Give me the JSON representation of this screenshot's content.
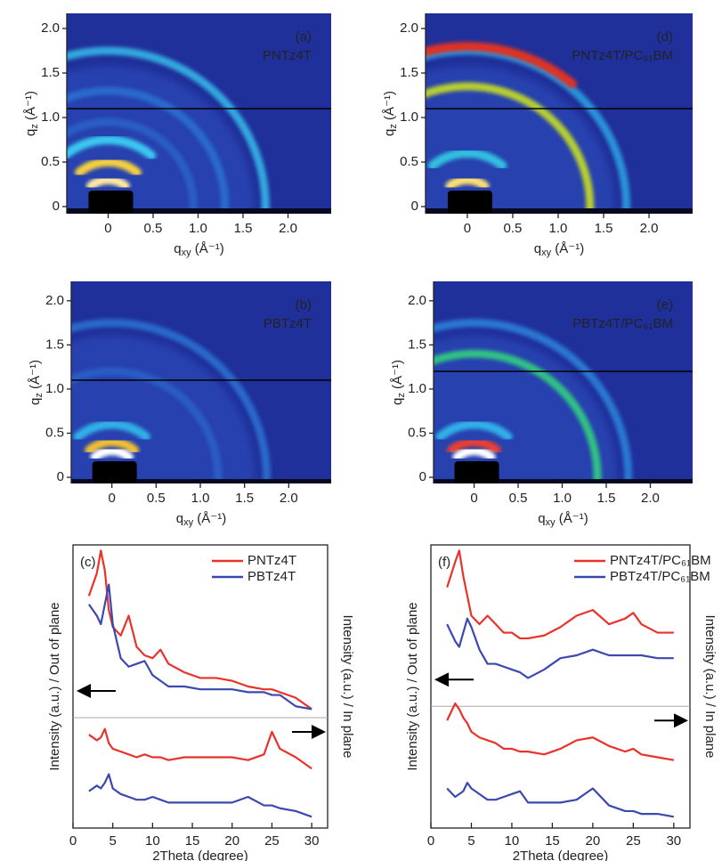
{
  "chart_data": [
    {
      "type": "image",
      "label": "(a)",
      "sample": "PNTz4T",
      "x_label": [
        "q",
        "xy",
        " (Å⁻¹)"
      ],
      "y_label": [
        "q",
        "z",
        " (Å⁻¹)"
      ],
      "xlim": [
        -0.46,
        2.48
      ],
      "ylim": [
        -0.08,
        2.17
      ],
      "xticks": [
        0,
        0.5,
        {
          "value": 1,
          "label": "1.0"
        },
        1.5,
        {
          "value": 2,
          "label": "2.0"
        }
      ],
      "yticks": [
        0,
        0.5,
        {
          "value": 1,
          "label": "1.0"
        },
        1.5,
        {
          "value": 2,
          "label": "2.0"
        }
      ],
      "cut_qz": 1.1,
      "rings": [
        {
          "q": 0.95,
          "color": "#2a62c8"
        },
        {
          "q": 1.3,
          "color": "#2a6fd0"
        },
        {
          "q": 1.75,
          "color": "#35b6e6"
        }
      ],
      "peaks": [
        {
          "qz": 0.75,
          "color": "#3ac8f0"
        },
        {
          "qz": 0.5,
          "color": "#f5d040"
        },
        {
          "qz": 0.3,
          "color": "#ffe9a0"
        }
      ]
    },
    {
      "type": "image",
      "label": "(b)",
      "sample": "PBTz4T",
      "x_label": [
        "q",
        "xy",
        " (Å⁻¹)"
      ],
      "y_label": [
        "q",
        "z",
        " (Å⁻¹)"
      ],
      "xlim": [
        -0.46,
        2.48
      ],
      "ylim": [
        -0.07,
        2.22
      ],
      "xticks": [
        0,
        0.5,
        {
          "value": 1,
          "label": "1.0"
        },
        1.5,
        {
          "value": 2,
          "label": "2.0"
        }
      ],
      "yticks": [
        0,
        0.5,
        {
          "value": 1,
          "label": "1.0"
        },
        1.5,
        {
          "value": 2,
          "label": "2.0"
        }
      ],
      "cut_qz": 1.1,
      "rings": [
        {
          "q": 1.2,
          "color": "#2a60c8"
        },
        {
          "q": 1.75,
          "color": "#2a70d0"
        }
      ],
      "peaks": [
        {
          "qz": 0.6,
          "color": "#30b0e8"
        },
        {
          "qz": 0.4,
          "color": "#f0c030"
        },
        {
          "qz": 0.3,
          "color": "#ffffff"
        }
      ]
    },
    {
      "type": "line",
      "label": "(c)",
      "x_label": "2Theta (degree)",
      "y_label": "Intensity (a.u.) / Out of plane",
      "y2_label": "Intensity (a.u.) / In plane",
      "xlim": [
        0,
        32
      ],
      "ylim": [
        0,
        100
      ],
      "xticks": [
        0,
        5,
        10,
        15,
        20,
        25,
        30
      ],
      "separator_y": 39,
      "x": [
        2,
        3,
        3.5,
        4,
        4.5,
        5,
        6,
        7,
        8,
        9,
        10,
        11,
        12,
        14,
        16,
        18,
        20,
        22,
        24,
        25,
        26,
        28,
        30
      ],
      "series": [
        {
          "name": "PNTz4T",
          "color": "#e8322a",
          "out_of_plane": [
            82,
            90,
            98,
            91,
            77,
            71,
            68,
            75,
            64,
            61,
            60,
            63,
            58,
            55,
            53,
            53,
            52,
            50,
            49,
            49,
            48,
            46,
            42
          ],
          "in_plane": [
            33,
            31,
            32,
            35,
            30,
            28,
            27,
            26,
            25,
            26,
            25,
            25,
            24,
            25,
            25,
            25,
            25,
            24,
            26,
            34,
            28,
            25,
            21
          ]
        },
        {
          "name": "PBTz4T",
          "color": "#3a48b0",
          "out_of_plane": [
            79,
            75,
            72,
            79,
            86,
            72,
            60,
            57,
            58,
            59,
            54,
            52,
            50,
            50,
            49,
            49,
            49,
            48,
            48,
            47,
            47,
            43,
            42
          ],
          "in_plane": [
            13,
            15,
            14,
            16,
            19,
            14,
            12,
            11,
            10,
            10,
            11,
            10,
            9,
            9,
            9,
            9,
            9,
            11,
            8,
            8,
            7,
            6,
            4
          ]
        }
      ]
    },
    {
      "type": "image",
      "label": "(d)",
      "sample": "PNTz4T/PC₆₁BM",
      "x_label": [
        "q",
        "xy",
        " (Å⁻¹)"
      ],
      "y_label": [
        "q",
        "z",
        " (Å⁻¹)"
      ],
      "xlim": [
        -0.46,
        2.48
      ],
      "ylim": [
        -0.08,
        2.17
      ],
      "xticks": [
        0,
        0.5,
        {
          "value": 1,
          "label": "1.0"
        },
        1.5,
        {
          "value": 2,
          "label": "2.0"
        }
      ],
      "yticks": [
        0,
        0.5,
        {
          "value": 1,
          "label": "1.0"
        },
        1.5,
        {
          "value": 2,
          "label": "2.0"
        }
      ],
      "cut_qz": 1.1,
      "rings": [
        {
          "q": 1.75,
          "color": "#2a9ee0"
        },
        {
          "q": 1.35,
          "color": "#c8e020"
        }
      ],
      "peaks": [
        {
          "qz": 1.8,
          "color": "#e03020"
        },
        {
          "qz": 0.6,
          "color": "#30c0e0"
        },
        {
          "qz": 0.3,
          "color": "#ffe070"
        }
      ]
    },
    {
      "type": "image",
      "label": "(e)",
      "sample": "PBTz4T/PC₆₁BM",
      "x_label": [
        "q",
        "xy",
        " (Å⁻¹)"
      ],
      "y_label": [
        "q",
        "z",
        " (Å⁻¹)"
      ],
      "xlim": [
        -0.46,
        2.48
      ],
      "ylim": [
        -0.07,
        2.22
      ],
      "xticks": [
        0,
        0.5,
        {
          "value": 1,
          "label": "1.0"
        },
        1.5,
        {
          "value": 2,
          "label": "2.0"
        }
      ],
      "yticks": [
        0,
        0.5,
        {
          "value": 1,
          "label": "1.0"
        },
        1.5,
        {
          "value": 2,
          "label": "2.0"
        }
      ],
      "cut_qz": 1.2,
      "rings": [
        {
          "q": 1.75,
          "color": "#2a80d8"
        },
        {
          "q": 1.4,
          "color": "#30d080"
        }
      ],
      "peaks": [
        {
          "qz": 0.6,
          "color": "#30b0e8"
        },
        {
          "qz": 0.4,
          "color": "#e84030"
        },
        {
          "qz": 0.3,
          "color": "#ffffff"
        }
      ]
    },
    {
      "type": "line",
      "label": "(f)",
      "x_label": "2Theta (degree)",
      "y_label": "Intensity (a.u.) / Out of plane",
      "y2_label": "Intensity (a.u.) / In plane",
      "xlim": [
        0,
        32
      ],
      "ylim": [
        0,
        100
      ],
      "xticks": [
        0,
        5,
        10,
        15,
        20,
        25,
        30
      ],
      "separator_y": 43,
      "x": [
        2,
        3,
        3.5,
        4,
        4.5,
        5,
        6,
        7,
        8,
        9,
        10,
        11,
        12,
        14,
        16,
        18,
        20,
        22,
        24,
        25,
        26,
        28,
        30
      ],
      "series": [
        {
          "name": "PNTz4T/PC₆₁BM",
          "color": "#e8322a",
          "out_of_plane": [
            85,
            94,
            98,
            89,
            82,
            75,
            72,
            75,
            72,
            69,
            69,
            67,
            67,
            68,
            71,
            75,
            77,
            72,
            74,
            76,
            72,
            69,
            69
          ],
          "in_plane": [
            38,
            44,
            42,
            39,
            37,
            34,
            32,
            31,
            30,
            28,
            28,
            27,
            27,
            26,
            28,
            31,
            32,
            29,
            27,
            28,
            26,
            25,
            24
          ]
        },
        {
          "name": "PBTz4T/PC₆₁BM",
          "color": "#3a48b0",
          "out_of_plane": [
            72,
            66,
            64,
            69,
            74,
            71,
            63,
            58,
            58,
            57,
            56,
            55,
            53,
            56,
            60,
            61,
            63,
            61,
            61,
            61,
            61,
            60,
            60
          ],
          "in_plane": [
            14,
            11,
            12,
            13,
            16,
            14,
            12,
            10,
            10,
            11,
            12,
            13,
            9,
            9,
            9,
            10,
            14,
            8,
            6,
            6,
            5,
            5,
            4
          ]
        }
      ]
    }
  ]
}
